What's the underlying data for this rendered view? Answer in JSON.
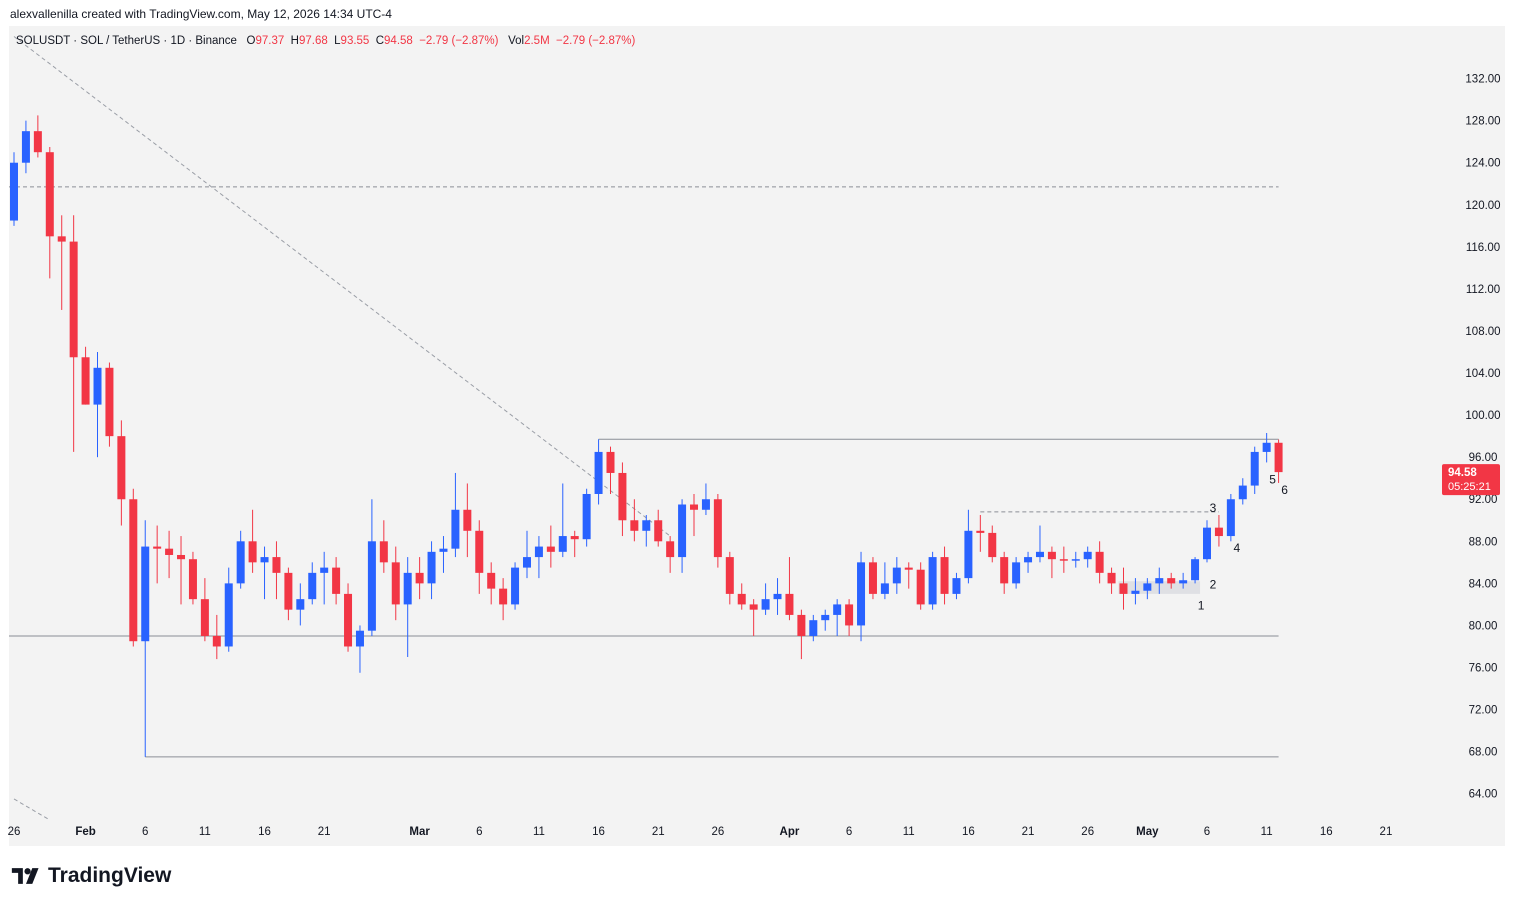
{
  "header": {
    "credit": "alexvallenilla created with TradingView.com, May 12, 2026 14:34 UTC-4"
  },
  "legend": {
    "symbol": "SOLUSDT · SOL / TetherUS · 1D · Binance",
    "open_label": "O",
    "open": "97.37",
    "high_label": "H",
    "high": "97.68",
    "low_label": "L",
    "low": "93.55",
    "close_label": "C",
    "close": "94.58",
    "change": "−2.79 (−2.87%)",
    "vol_label": "Vol",
    "vol": "2.5M",
    "vol_change": "−2.79 (−2.87%)"
  },
  "price_badge": {
    "price": "94.58",
    "countdown": "05:25:21",
    "color": "#f23645"
  },
  "brand": {
    "name": "TradingView",
    "logo_icon": "tradingview-logo-icon"
  },
  "colors": {
    "up": "#2962ff",
    "down": "#f23645",
    "background": "#f3f3f3",
    "text": "#131722"
  },
  "chart_data": {
    "type": "candlestick",
    "price_axis": {
      "ylim": [
        61.5,
        137
      ],
      "ticks": [
        64,
        68,
        72,
        76,
        80,
        84,
        88,
        92,
        96,
        100,
        104,
        108,
        112,
        116,
        120,
        124,
        128,
        132
      ],
      "tick_labels": [
        "64.00",
        "68.00",
        "72.00",
        "76.00",
        "80.00",
        "84.00",
        "88.00",
        "92.00",
        "96.00",
        "100.00",
        "104.00",
        "108.00",
        "112.00",
        "116.00",
        "120.00",
        "124.00",
        "128.00",
        "132.00"
      ]
    },
    "time_axis": {
      "start_date": "2026-01-26",
      "end_date": "2026-05-24",
      "ticks": [
        {
          "date": "2026-01-26",
          "label": "26"
        },
        {
          "date": "2026-02-01",
          "label": "Feb"
        },
        {
          "date": "2026-02-06",
          "label": "6"
        },
        {
          "date": "2026-02-11",
          "label": "11"
        },
        {
          "date": "2026-02-16",
          "label": "16"
        },
        {
          "date": "2026-02-21",
          "label": "21"
        },
        {
          "date": "2026-03-01",
          "label": "Mar"
        },
        {
          "date": "2026-03-06",
          "label": "6"
        },
        {
          "date": "2026-03-11",
          "label": "11"
        },
        {
          "date": "2026-03-16",
          "label": "16"
        },
        {
          "date": "2026-03-21",
          "label": "21"
        },
        {
          "date": "2026-03-26",
          "label": "26"
        },
        {
          "date": "2026-04-01",
          "label": "Apr"
        },
        {
          "date": "2026-04-06",
          "label": "6"
        },
        {
          "date": "2026-04-11",
          "label": "11"
        },
        {
          "date": "2026-04-16",
          "label": "16"
        },
        {
          "date": "2026-04-21",
          "label": "21"
        },
        {
          "date": "2026-04-26",
          "label": "26"
        },
        {
          "date": "2026-05-01",
          "label": "May"
        },
        {
          "date": "2026-05-06",
          "label": "6"
        },
        {
          "date": "2026-05-11",
          "label": "11"
        },
        {
          "date": "2026-05-16",
          "label": "16"
        },
        {
          "date": "2026-05-21",
          "label": "21"
        }
      ]
    },
    "candles": [
      {
        "date": "2026-01-26",
        "o": 118.5,
        "h": 125.0,
        "l": 118.0,
        "c": 124.0
      },
      {
        "date": "2026-01-27",
        "o": 124.0,
        "h": 128.0,
        "l": 123.0,
        "c": 127.0
      },
      {
        "date": "2026-01-28",
        "o": 127.0,
        "h": 128.5,
        "l": 124.5,
        "c": 125.0
      },
      {
        "date": "2026-01-29",
        "o": 125.0,
        "h": 125.5,
        "l": 113.0,
        "c": 117.0
      },
      {
        "date": "2026-01-30",
        "o": 117.0,
        "h": 119.0,
        "l": 110.0,
        "c": 116.5
      },
      {
        "date": "2026-01-31",
        "o": 116.5,
        "h": 119.0,
        "l": 96.5,
        "c": 105.5
      },
      {
        "date": "2026-02-01",
        "o": 105.5,
        "h": 106.5,
        "l": 101.0,
        "c": 101.0
      },
      {
        "date": "2026-02-02",
        "o": 101.0,
        "h": 106.0,
        "l": 96.0,
        "c": 104.5
      },
      {
        "date": "2026-02-03",
        "o": 104.5,
        "h": 105.0,
        "l": 97.0,
        "c": 98.0
      },
      {
        "date": "2026-02-04",
        "o": 98.0,
        "h": 99.5,
        "l": 89.5,
        "c": 92.0
      },
      {
        "date": "2026-02-05",
        "o": 92.0,
        "h": 93.0,
        "l": 78.0,
        "c": 78.5
      },
      {
        "date": "2026-02-06",
        "o": 78.5,
        "h": 90.0,
        "l": 67.5,
        "c": 87.5
      },
      {
        "date": "2026-02-07",
        "o": 87.5,
        "h": 89.5,
        "l": 84.0,
        "c": 87.3
      },
      {
        "date": "2026-02-08",
        "o": 87.3,
        "h": 89.0,
        "l": 84.5,
        "c": 86.7
      },
      {
        "date": "2026-02-09",
        "o": 86.7,
        "h": 88.5,
        "l": 82.0,
        "c": 86.3
      },
      {
        "date": "2026-02-10",
        "o": 86.3,
        "h": 87.0,
        "l": 82.0,
        "c": 82.5
      },
      {
        "date": "2026-02-11",
        "o": 82.5,
        "h": 84.5,
        "l": 78.5,
        "c": 79.0
      },
      {
        "date": "2026-02-12",
        "o": 79.0,
        "h": 81.0,
        "l": 76.8,
        "c": 78.0
      },
      {
        "date": "2026-02-13",
        "o": 78.0,
        "h": 85.5,
        "l": 77.5,
        "c": 84.0
      },
      {
        "date": "2026-02-14",
        "o": 84.0,
        "h": 89.0,
        "l": 83.5,
        "c": 88.0
      },
      {
        "date": "2026-02-15",
        "o": 88.0,
        "h": 91.0,
        "l": 85.0,
        "c": 86.0
      },
      {
        "date": "2026-02-16",
        "o": 86.0,
        "h": 87.5,
        "l": 82.5,
        "c": 86.5
      },
      {
        "date": "2026-02-17",
        "o": 86.5,
        "h": 88.0,
        "l": 82.5,
        "c": 85.0
      },
      {
        "date": "2026-02-18",
        "o": 85.0,
        "h": 85.5,
        "l": 80.5,
        "c": 81.5
      },
      {
        "date": "2026-02-19",
        "o": 81.5,
        "h": 84.0,
        "l": 80.0,
        "c": 82.5
      },
      {
        "date": "2026-02-20",
        "o": 82.5,
        "h": 86.0,
        "l": 82.0,
        "c": 85.0
      },
      {
        "date": "2026-02-21",
        "o": 85.0,
        "h": 87.0,
        "l": 82.0,
        "c": 85.5
      },
      {
        "date": "2026-02-22",
        "o": 85.5,
        "h": 86.5,
        "l": 82.0,
        "c": 83.0
      },
      {
        "date": "2026-02-23",
        "o": 83.0,
        "h": 84.0,
        "l": 77.5,
        "c": 78.0
      },
      {
        "date": "2026-02-24",
        "o": 78.0,
        "h": 80.0,
        "l": 75.5,
        "c": 79.5
      },
      {
        "date": "2026-02-25",
        "o": 79.5,
        "h": 92.0,
        "l": 79.0,
        "c": 88.0
      },
      {
        "date": "2026-02-26",
        "o": 88.0,
        "h": 90.0,
        "l": 85.0,
        "c": 86.0
      },
      {
        "date": "2026-02-27",
        "o": 86.0,
        "h": 87.5,
        "l": 80.5,
        "c": 82.0
      },
      {
        "date": "2026-02-28",
        "o": 82.0,
        "h": 86.5,
        "l": 77.0,
        "c": 85.0
      },
      {
        "date": "2026-03-01",
        "o": 85.0,
        "h": 86.5,
        "l": 82.5,
        "c": 84.0
      },
      {
        "date": "2026-03-02",
        "o": 84.0,
        "h": 88.0,
        "l": 82.5,
        "c": 87.0
      },
      {
        "date": "2026-03-03",
        "o": 87.0,
        "h": 88.5,
        "l": 85.0,
        "c": 87.3
      },
      {
        "date": "2026-03-04",
        "o": 87.3,
        "h": 94.5,
        "l": 86.5,
        "c": 91.0
      },
      {
        "date": "2026-03-05",
        "o": 91.0,
        "h": 93.5,
        "l": 86.5,
        "c": 89.0
      },
      {
        "date": "2026-03-06",
        "o": 89.0,
        "h": 90.0,
        "l": 83.0,
        "c": 85.0
      },
      {
        "date": "2026-03-07",
        "o": 85.0,
        "h": 86.0,
        "l": 82.0,
        "c": 83.5
      },
      {
        "date": "2026-03-08",
        "o": 83.5,
        "h": 84.5,
        "l": 80.5,
        "c": 82.0
      },
      {
        "date": "2026-03-09",
        "o": 82.0,
        "h": 86.0,
        "l": 81.5,
        "c": 85.5
      },
      {
        "date": "2026-03-10",
        "o": 85.5,
        "h": 89.0,
        "l": 84.5,
        "c": 86.5
      },
      {
        "date": "2026-03-11",
        "o": 86.5,
        "h": 88.5,
        "l": 84.5,
        "c": 87.5
      },
      {
        "date": "2026-03-12",
        "o": 87.5,
        "h": 89.5,
        "l": 85.5,
        "c": 87.0
      },
      {
        "date": "2026-03-13",
        "o": 87.0,
        "h": 93.5,
        "l": 86.5,
        "c": 88.5
      },
      {
        "date": "2026-03-14",
        "o": 88.5,
        "h": 89.0,
        "l": 86.5,
        "c": 88.2
      },
      {
        "date": "2026-03-15",
        "o": 88.2,
        "h": 93.0,
        "l": 87.5,
        "c": 92.5
      },
      {
        "date": "2026-03-16",
        "o": 92.5,
        "h": 97.7,
        "l": 91.5,
        "c": 96.5
      },
      {
        "date": "2026-03-17",
        "o": 96.5,
        "h": 97.0,
        "l": 92.5,
        "c": 94.5
      },
      {
        "date": "2026-03-18",
        "o": 94.5,
        "h": 95.5,
        "l": 88.5,
        "c": 90.0
      },
      {
        "date": "2026-03-19",
        "o": 90.0,
        "h": 92.0,
        "l": 88.0,
        "c": 89.0
      },
      {
        "date": "2026-03-20",
        "o": 89.0,
        "h": 90.5,
        "l": 87.5,
        "c": 90.0
      },
      {
        "date": "2026-03-21",
        "o": 90.0,
        "h": 91.0,
        "l": 87.5,
        "c": 88.0
      },
      {
        "date": "2026-03-22",
        "o": 88.0,
        "h": 88.5,
        "l": 85.0,
        "c": 86.5
      },
      {
        "date": "2026-03-23",
        "o": 86.5,
        "h": 92.0,
        "l": 85.0,
        "c": 91.5
      },
      {
        "date": "2026-03-24",
        "o": 91.5,
        "h": 92.5,
        "l": 88.5,
        "c": 91.0
      },
      {
        "date": "2026-03-25",
        "o": 91.0,
        "h": 93.5,
        "l": 90.5,
        "c": 92.0
      },
      {
        "date": "2026-03-26",
        "o": 92.0,
        "h": 92.5,
        "l": 85.5,
        "c": 86.5
      },
      {
        "date": "2026-03-27",
        "o": 86.5,
        "h": 87.0,
        "l": 82.0,
        "c": 83.0
      },
      {
        "date": "2026-03-28",
        "o": 83.0,
        "h": 84.0,
        "l": 81.5,
        "c": 82.0
      },
      {
        "date": "2026-03-29",
        "o": 82.0,
        "h": 82.5,
        "l": 79.0,
        "c": 81.5
      },
      {
        "date": "2026-03-30",
        "o": 81.5,
        "h": 84.0,
        "l": 81.0,
        "c": 82.5
      },
      {
        "date": "2026-03-31",
        "o": 82.5,
        "h": 84.5,
        "l": 81.0,
        "c": 83.0
      },
      {
        "date": "2026-04-01",
        "o": 83.0,
        "h": 86.5,
        "l": 80.5,
        "c": 81.0
      },
      {
        "date": "2026-04-02",
        "o": 81.0,
        "h": 81.5,
        "l": 76.8,
        "c": 79.0
      },
      {
        "date": "2026-04-03",
        "o": 79.0,
        "h": 81.0,
        "l": 78.5,
        "c": 80.5
      },
      {
        "date": "2026-04-04",
        "o": 80.5,
        "h": 81.5,
        "l": 79.5,
        "c": 81.0
      },
      {
        "date": "2026-04-05",
        "o": 81.0,
        "h": 82.5,
        "l": 79.0,
        "c": 82.0
      },
      {
        "date": "2026-04-06",
        "o": 82.0,
        "h": 82.5,
        "l": 79.0,
        "c": 80.0
      },
      {
        "date": "2026-04-07",
        "o": 80.0,
        "h": 87.0,
        "l": 78.5,
        "c": 86.0
      },
      {
        "date": "2026-04-08",
        "o": 86.0,
        "h": 86.5,
        "l": 82.5,
        "c": 83.0
      },
      {
        "date": "2026-04-09",
        "o": 83.0,
        "h": 86.0,
        "l": 82.5,
        "c": 84.0
      },
      {
        "date": "2026-04-10",
        "o": 84.0,
        "h": 86.5,
        "l": 83.0,
        "c": 85.5
      },
      {
        "date": "2026-04-11",
        "o": 85.5,
        "h": 86.0,
        "l": 83.5,
        "c": 85.3
      },
      {
        "date": "2026-04-12",
        "o": 85.3,
        "h": 86.0,
        "l": 81.5,
        "c": 82.0
      },
      {
        "date": "2026-04-13",
        "o": 82.0,
        "h": 87.0,
        "l": 81.5,
        "c": 86.5
      },
      {
        "date": "2026-04-14",
        "o": 86.5,
        "h": 87.5,
        "l": 82.0,
        "c": 83.0
      },
      {
        "date": "2026-04-15",
        "o": 83.0,
        "h": 85.0,
        "l": 82.5,
        "c": 84.5
      },
      {
        "date": "2026-04-16",
        "o": 84.5,
        "h": 91.0,
        "l": 84.0,
        "c": 89.0
      },
      {
        "date": "2026-04-17",
        "o": 89.0,
        "h": 90.5,
        "l": 87.0,
        "c": 88.8
      },
      {
        "date": "2026-04-18",
        "o": 88.8,
        "h": 89.5,
        "l": 86.0,
        "c": 86.5
      },
      {
        "date": "2026-04-19",
        "o": 86.5,
        "h": 87.0,
        "l": 83.0,
        "c": 84.0
      },
      {
        "date": "2026-04-20",
        "o": 84.0,
        "h": 86.5,
        "l": 83.5,
        "c": 86.0
      },
      {
        "date": "2026-04-21",
        "o": 86.0,
        "h": 87.0,
        "l": 85.0,
        "c": 86.5
      },
      {
        "date": "2026-04-22",
        "o": 86.5,
        "h": 89.5,
        "l": 86.0,
        "c": 87.0
      },
      {
        "date": "2026-04-23",
        "o": 87.0,
        "h": 87.5,
        "l": 84.5,
        "c": 86.3
      },
      {
        "date": "2026-04-24",
        "o": 86.3,
        "h": 87.5,
        "l": 85.0,
        "c": 86.2
      },
      {
        "date": "2026-04-25",
        "o": 86.2,
        "h": 87.0,
        "l": 85.5,
        "c": 86.3
      },
      {
        "date": "2026-04-26",
        "o": 86.3,
        "h": 87.5,
        "l": 85.5,
        "c": 87.0
      },
      {
        "date": "2026-04-27",
        "o": 87.0,
        "h": 88.0,
        "l": 84.0,
        "c": 85.0
      },
      {
        "date": "2026-04-28",
        "o": 85.0,
        "h": 85.5,
        "l": 83.0,
        "c": 84.0
      },
      {
        "date": "2026-04-29",
        "o": 84.0,
        "h": 85.5,
        "l": 81.5,
        "c": 83.0
      },
      {
        "date": "2026-04-30",
        "o": 83.0,
        "h": 84.5,
        "l": 82.0,
        "c": 83.3
      },
      {
        "date": "2026-05-01",
        "o": 83.3,
        "h": 84.5,
        "l": 82.5,
        "c": 84.0
      },
      {
        "date": "2026-05-02",
        "o": 84.0,
        "h": 85.5,
        "l": 83.0,
        "c": 84.5
      },
      {
        "date": "2026-05-03",
        "o": 84.5,
        "h": 85.0,
        "l": 83.5,
        "c": 84.0
      },
      {
        "date": "2026-05-04",
        "o": 84.0,
        "h": 85.0,
        "l": 83.5,
        "c": 84.3
      },
      {
        "date": "2026-05-05",
        "o": 84.3,
        "h": 86.5,
        "l": 84.0,
        "c": 86.3
      },
      {
        "date": "2026-05-06",
        "o": 86.3,
        "h": 90.0,
        "l": 86.0,
        "c": 89.3
      },
      {
        "date": "2026-05-07",
        "o": 89.3,
        "h": 90.5,
        "l": 87.5,
        "c": 88.5
      },
      {
        "date": "2026-05-08",
        "o": 88.5,
        "h": 92.5,
        "l": 88.0,
        "c": 92.0
      },
      {
        "date": "2026-05-09",
        "o": 92.0,
        "h": 94.0,
        "l": 91.5,
        "c": 93.3
      },
      {
        "date": "2026-05-10",
        "o": 93.3,
        "h": 97.0,
        "l": 92.5,
        "c": 96.5
      },
      {
        "date": "2026-05-11",
        "o": 96.5,
        "h": 98.3,
        "l": 95.5,
        "c": 97.37
      },
      {
        "date": "2026-05-12",
        "o": 97.37,
        "h": 97.68,
        "l": 93.55,
        "c": 94.58
      }
    ],
    "levels": [
      {
        "price": 121.7,
        "style": "dashed",
        "from": "2026-01-26",
        "to": "2026-05-12"
      },
      {
        "price": 97.7,
        "style": "solid",
        "from": "2026-03-16",
        "to": "2026-05-12"
      },
      {
        "price": 79.0,
        "style": "solid",
        "from": "2026-01-26",
        "to": "2026-05-12"
      },
      {
        "price": 67.5,
        "style": "solid",
        "from": "2026-02-06",
        "to": "2026-05-12"
      },
      {
        "price": 90.8,
        "style": "dashed",
        "from": "2026-04-17",
        "to": "2026-05-07"
      }
    ],
    "trendline": {
      "style": "dashed",
      "from": {
        "date": "2026-01-26",
        "price": 136.0
      },
      "to": {
        "date": "2026-03-22",
        "price": 88.5
      }
    },
    "trendline_lower": {
      "style": "dashed",
      "from": {
        "date": "2026-01-26",
        "price": 63.5
      },
      "to": {
        "date": "2026-01-29",
        "price": 61.5
      }
    },
    "range_box": {
      "from": "2026-04-29",
      "to": "2026-05-05",
      "low": 83.0,
      "high": 84.2
    },
    "wave_labels": [
      {
        "text": "1",
        "date": "2026-05-05",
        "price": 81.5
      },
      {
        "text": "2",
        "date": "2026-05-06",
        "price": 83.5
      },
      {
        "text": "3",
        "date": "2026-05-06",
        "price": 90.8
      },
      {
        "text": "4",
        "date": "2026-05-08",
        "price": 87.0
      },
      {
        "text": "5",
        "date": "2026-05-11",
        "price": 93.5
      },
      {
        "text": "6",
        "date": "2026-05-12",
        "price": 92.5
      }
    ]
  }
}
